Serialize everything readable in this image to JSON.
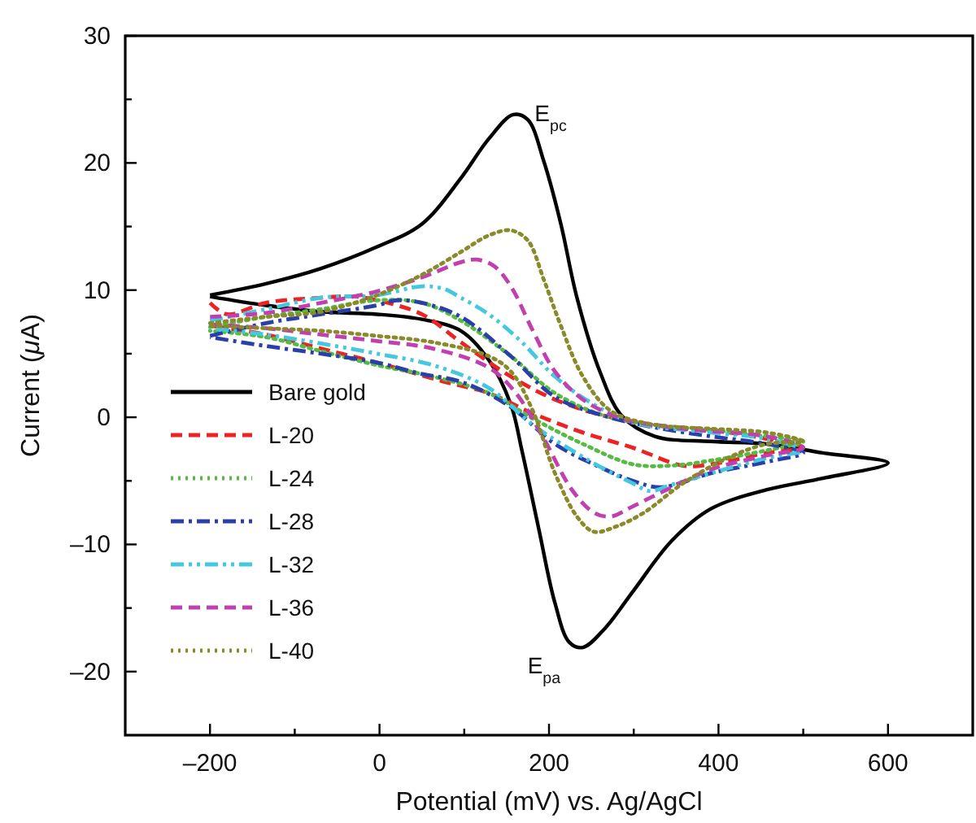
{
  "chart_data": {
    "type": "line",
    "xlabel": "Potential (mV) vs. Ag/AgCl",
    "ylabel": "Current (μA)",
    "xlim": [
      -300,
      700
    ],
    "ylim": [
      -25,
      30
    ],
    "xticks": [
      {
        "value": -200,
        "label": "–200"
      },
      {
        "value": -100,
        "label": null
      },
      0,
      {
        "value": 100,
        "label": null
      },
      200,
      {
        "value": 300,
        "label": null
      },
      400,
      {
        "value": 500,
        "label": null
      },
      600
    ],
    "yticks": [
      {
        "value": -20,
        "label": "–20"
      },
      {
        "value": -15,
        "label": null
      },
      {
        "value": -10,
        "label": "–10"
      },
      {
        "value": -5,
        "label": null
      },
      0,
      {
        "value": 5,
        "label": null
      },
      10,
      {
        "value": 15,
        "label": null
      },
      20,
      {
        "value": 25,
        "label": null
      },
      30
    ],
    "grid": false,
    "legend": "bottom left",
    "marker": "none",
    "annotations": [
      {
        "text": "E$_{pc}$",
        "x": 160,
        "y": 23.8
      },
      {
        "text": "E$_{pa}$",
        "x": 240,
        "y": -18.1
      }
    ],
    "series": [
      {
        "name": "Bare gold",
        "color": "#000000",
        "line_style": "solid",
        "x": [
          -200,
          -134,
          -69,
          -3,
          50,
          96,
          129,
          158,
          175,
          194,
          214,
          233,
          260,
          286,
          325,
          391,
          457,
          523,
          600,
          523,
          457,
          391,
          345,
          299,
          266,
          240,
          224,
          207,
          188,
          168,
          155,
          129,
          96,
          50,
          -3,
          -69,
          -134,
          -200
        ],
        "values": [
          9.6,
          10.5,
          11.7,
          13.4,
          15.2,
          18.8,
          21.9,
          23.8,
          23.4,
          20.1,
          15.2,
          9.4,
          3.6,
          0.1,
          -1.5,
          -1.9,
          -2.1,
          -2.8,
          -3.6,
          -4.8,
          -5.7,
          -7.2,
          -9.7,
          -13.7,
          -16.6,
          -18.1,
          -17.7,
          -14.6,
          -8.8,
          -2.6,
          1.0,
          4.5,
          6.8,
          7.7,
          8.1,
          8.3,
          8.8,
          9.5
        ]
      },
      {
        "name": "L-20",
        "color": "#ee2222",
        "line_style": "dashed",
        "x": [
          -200,
          -180,
          -134,
          -69,
          -30,
          -3,
          50,
          96,
          155,
          207,
          266,
          325,
          391,
          457,
          500,
          457,
          391,
          358,
          299,
          240,
          181,
          129,
          76,
          -3,
          -69,
          -134,
          -200
        ],
        "values": [
          9.0,
          8.1,
          9.0,
          9.4,
          9.5,
          9.2,
          8.1,
          5.9,
          3.2,
          1.4,
          0.1,
          -0.6,
          -1.0,
          -1.7,
          -2.4,
          -2.8,
          -3.7,
          -3.8,
          -2.4,
          -1.2,
          0.3,
          1.9,
          2.8,
          4.3,
          5.4,
          6.5,
          7.2
        ]
      },
      {
        "name": "L-24",
        "color": "#55bb44",
        "line_style": "dotted",
        "x": [
          -200,
          -134,
          -69,
          -3,
          50,
          96,
          155,
          207,
          266,
          325,
          391,
          457,
          500,
          457,
          391,
          345,
          299,
          240,
          181,
          129,
          63,
          -3,
          -69,
          -134,
          -200
        ],
        "values": [
          7.1,
          7.9,
          8.5,
          9.2,
          9.0,
          7.6,
          4.8,
          1.9,
          0.1,
          -0.6,
          -1.0,
          -1.5,
          -1.9,
          -2.6,
          -3.4,
          -3.8,
          -3.7,
          -2.1,
          -0.1,
          1.9,
          3.2,
          4.1,
          5.2,
          6.3,
          6.8
        ]
      },
      {
        "name": "L-28",
        "color": "#2b3fa8",
        "line_style": "dashdot",
        "x": [
          -200,
          -134,
          -69,
          -3,
          20,
          50,
          96,
          155,
          207,
          266,
          325,
          391,
          457,
          500,
          457,
          391,
          332,
          299,
          253,
          207,
          155,
          96,
          50,
          -3,
          -69,
          -134,
          -200
        ],
        "values": [
          6.4,
          7.4,
          8.1,
          8.8,
          9.2,
          9.0,
          7.9,
          4.8,
          1.6,
          0.1,
          -0.8,
          -1.5,
          -2.1,
          -2.8,
          -3.5,
          -4.4,
          -5.5,
          -5.0,
          -3.7,
          -2.1,
          0.8,
          2.8,
          3.4,
          4.3,
          5.0,
          5.6,
          6.3
        ]
      },
      {
        "name": "L-32",
        "color": "#44c8e0",
        "line_style": "dashdotdot",
        "x": [
          -200,
          -134,
          -69,
          -3,
          50,
          76,
          96,
          129,
          168,
          207,
          253,
          299,
          391,
          457,
          500,
          457,
          391,
          345,
          319,
          299,
          266,
          227,
          181,
          129,
          63,
          -3,
          -69,
          -134,
          -200
        ],
        "values": [
          7.6,
          8.5,
          9.4,
          9.6,
          10.3,
          10.1,
          9.4,
          8.1,
          5.9,
          3.2,
          1.0,
          -0.4,
          -1.2,
          -1.7,
          -2.6,
          -3.2,
          -4.4,
          -5.3,
          -5.8,
          -5.2,
          -4.1,
          -2.6,
          -0.6,
          2.3,
          4.1,
          5.0,
          5.8,
          6.5,
          7.0
        ]
      },
      {
        "name": "L-36",
        "color": "#c040b0",
        "line_style": "dashed",
        "x": [
          -200,
          -134,
          -69,
          -3,
          50,
          96,
          115,
          135,
          155,
          181,
          207,
          240,
          286,
          358,
          457,
          500,
          457,
          391,
          345,
          299,
          273,
          253,
          227,
          194,
          161,
          129,
          63,
          -3,
          -69,
          -134,
          -200
        ],
        "values": [
          7.9,
          8.2,
          9.0,
          9.9,
          11.0,
          12.2,
          12.4,
          11.9,
          10.3,
          6.8,
          3.6,
          1.4,
          -0.1,
          -0.9,
          -1.5,
          -2.4,
          -3.0,
          -4.1,
          -5.5,
          -7.0,
          -7.8,
          -7.5,
          -5.7,
          -1.7,
          1.9,
          3.9,
          5.4,
          6.0,
          6.5,
          7.0,
          7.3
        ]
      },
      {
        "name": "L-40",
        "color": "#8a8a2a",
        "line_style": "dotted",
        "x": [
          -200,
          -134,
          -69,
          -3,
          50,
          96,
          129,
          155,
          175,
          194,
          214,
          240,
          273,
          325,
          391,
          457,
          500,
          457,
          411,
          358,
          312,
          279,
          253,
          234,
          207,
          181,
          155,
          129,
          63,
          -3,
          -69,
          -134,
          -200
        ],
        "values": [
          7.4,
          7.9,
          8.3,
          9.6,
          11.2,
          13.0,
          14.3,
          14.7,
          13.9,
          10.8,
          7.2,
          3.2,
          0.5,
          -0.6,
          -0.9,
          -1.2,
          -1.9,
          -2.1,
          -3.2,
          -5.2,
          -7.5,
          -8.6,
          -9.0,
          -7.9,
          -4.4,
          0.5,
          3.6,
          4.8,
          5.9,
          6.4,
          6.8,
          7.0,
          7.2
        ]
      }
    ]
  }
}
